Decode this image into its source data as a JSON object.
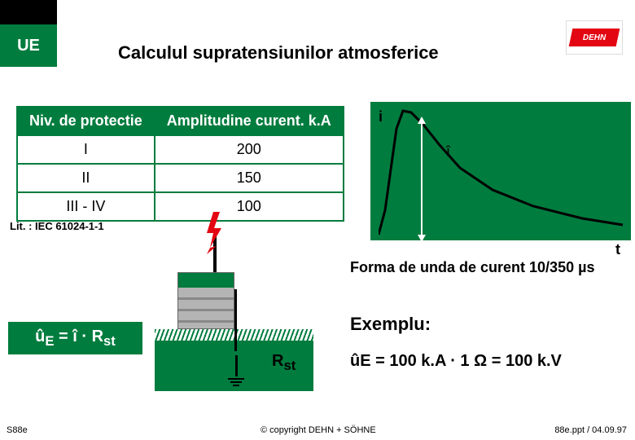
{
  "header": {
    "badge": "UE",
    "title": "Calculul supratensiunilor atmosferice",
    "logo_text": "DEHN"
  },
  "table": {
    "col1": "Niv. de protectie",
    "col2": "Amplitudine curent. k.A",
    "rows": [
      {
        "level": "I",
        "value": "200"
      },
      {
        "level": "II",
        "value": "150"
      },
      {
        "level": "III - IV",
        "value": "100"
      }
    ]
  },
  "litref": "Lit. : IEC 61024-1-1",
  "chart": {
    "type": "line",
    "y_label": "i",
    "peak_label": "î",
    "x_label": "t",
    "caption": "Forma de unda de curent 10/350 µs",
    "background_color": "#007c3e",
    "line_color": "#000000",
    "line_width": 3,
    "points": [
      [
        0,
        0
      ],
      [
        8,
        30
      ],
      [
        15,
        80
      ],
      [
        22,
        130
      ],
      [
        30,
        152
      ],
      [
        40,
        150
      ],
      [
        55,
        135
      ],
      [
        75,
        110
      ],
      [
        100,
        82
      ],
      [
        140,
        55
      ],
      [
        190,
        35
      ],
      [
        250,
        20
      ],
      [
        300,
        12
      ]
    ]
  },
  "formula": {
    "main": "ûE = î · Rst"
  },
  "diagram": {
    "rst_label": "Rst",
    "bolt_color": "#e30613",
    "ground_color": "#007c3e",
    "building_body": "#b4b4b4",
    "building_top": "#007c3e"
  },
  "example": {
    "heading": "Exemplu:",
    "equation_prefix": "ûE = 100 k.A · 1 ",
    "equation_suffix": " = 100 k.V"
  },
  "footer": {
    "slide_id": "S88e",
    "copyright": "© copyright DEHN + SÖHNE",
    "fileref": "88e.ppt / 04.09.97"
  }
}
